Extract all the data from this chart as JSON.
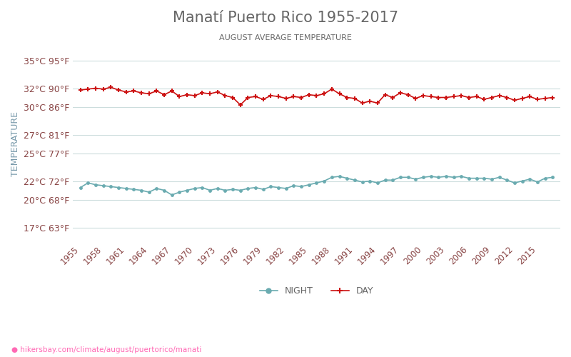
{
  "title": "Manatí Puerto Rico 1955-2017",
  "subtitle": "AUGUST AVERAGE TEMPERATURE",
  "ylabel": "TEMPERATURE",
  "url": "hikersbay.com/climate/august/puertorico/manati",
  "years": [
    1955,
    1956,
    1957,
    1958,
    1959,
    1960,
    1961,
    1962,
    1963,
    1964,
    1965,
    1966,
    1967,
    1968,
    1969,
    1970,
    1971,
    1972,
    1973,
    1974,
    1975,
    1976,
    1977,
    1978,
    1979,
    1980,
    1981,
    1982,
    1983,
    1984,
    1985,
    1986,
    1987,
    1988,
    1989,
    1990,
    1991,
    1992,
    1993,
    1994,
    1995,
    1996,
    1997,
    1998,
    1999,
    2000,
    2001,
    2002,
    2003,
    2004,
    2005,
    2006,
    2007,
    2008,
    2009,
    2010,
    2011,
    2012,
    2013,
    2014,
    2015,
    2016,
    2017
  ],
  "day_temps": [
    31.8,
    31.9,
    32.0,
    31.9,
    32.1,
    31.8,
    31.6,
    31.7,
    31.5,
    31.4,
    31.7,
    31.3,
    31.7,
    31.1,
    31.3,
    31.2,
    31.5,
    31.4,
    31.6,
    31.2,
    31.0,
    30.2,
    31.0,
    31.1,
    30.8,
    31.2,
    31.1,
    30.9,
    31.1,
    31.0,
    31.3,
    31.2,
    31.4,
    31.9,
    31.4,
    31.0,
    30.9,
    30.4,
    30.6,
    30.4,
    31.3,
    31.0,
    31.5,
    31.3,
    30.9,
    31.2,
    31.1,
    31.0,
    31.0,
    31.1,
    31.2,
    31.0,
    31.1,
    30.8,
    31.0,
    31.2,
    31.0,
    30.7,
    30.9,
    31.1,
    30.8,
    30.9,
    31.0
  ],
  "night_temps": [
    21.3,
    21.8,
    21.6,
    21.5,
    21.4,
    21.3,
    21.2,
    21.1,
    21.0,
    20.8,
    21.2,
    21.0,
    20.5,
    20.8,
    21.0,
    21.2,
    21.3,
    21.0,
    21.2,
    21.0,
    21.1,
    21.0,
    21.2,
    21.3,
    21.1,
    21.4,
    21.3,
    21.2,
    21.5,
    21.4,
    21.6,
    21.8,
    22.0,
    22.4,
    22.5,
    22.3,
    22.1,
    21.9,
    22.0,
    21.8,
    22.1,
    22.1,
    22.4,
    22.4,
    22.2,
    22.4,
    22.5,
    22.4,
    22.5,
    22.4,
    22.5,
    22.3,
    22.3,
    22.3,
    22.2,
    22.4,
    22.1,
    21.8,
    22.0,
    22.2,
    21.9,
    22.3,
    22.4
  ],
  "yticks_c": [
    17,
    20,
    22,
    25,
    27,
    30,
    32,
    35
  ],
  "yticks_f": [
    63,
    68,
    72,
    77,
    81,
    86,
    90,
    95
  ],
  "xticks": [
    1955,
    1958,
    1961,
    1964,
    1967,
    1970,
    1973,
    1976,
    1979,
    1982,
    1985,
    1988,
    1991,
    1994,
    1997,
    2000,
    2003,
    2006,
    2009,
    2012,
    2015
  ],
  "ylim": [
    15.5,
    36.5
  ],
  "xlim": [
    1954,
    2018
  ],
  "day_color": "#cc1111",
  "night_color": "#6aabb0",
  "grid_color": "#ccdddd",
  "title_color": "#666666",
  "label_color": "#884444",
  "ylabel_color": "#7799aa",
  "bg_color": "#ffffff",
  "legend_night": "NIGHT",
  "legend_day": "DAY",
  "url_color": "#ff69b4"
}
